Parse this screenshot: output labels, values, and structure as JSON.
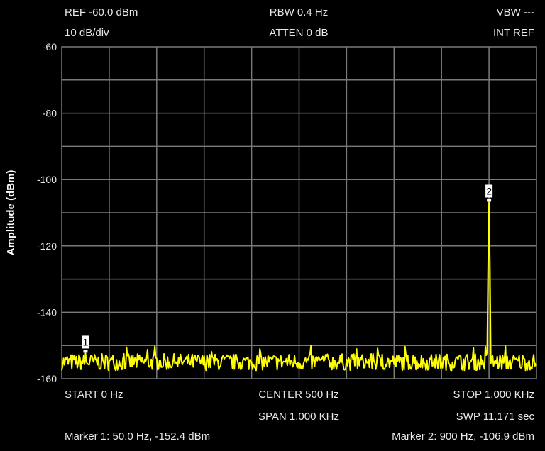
{
  "header": {
    "ref": "REF -60.0 dBm",
    "rbw": "RBW 0.4 Hz",
    "vbw": "VBW ---",
    "scale": "10 dB/div",
    "atten": "ATTEN 0 dB",
    "int_ref": "INT REF"
  },
  "footer": {
    "start": "START 0 Hz",
    "center": "CENTER 500 Hz",
    "stop": "STOP 1.000 KHz",
    "span": "SPAN 1.000 KHz",
    "swp": "SWP 11.171 sec",
    "marker1": "Marker 1: 50.0 Hz, -152.4 dBm",
    "marker2": "Marker 2: 900 Hz, -106.9 dBm"
  },
  "colors": {
    "trace": "#ffff00",
    "grid": "#7a7a7a",
    "background": "#000000"
  },
  "chart_data": {
    "type": "line",
    "ylabel": "Amplitude (dBm)",
    "xlabel": "",
    "title": "",
    "xlim": [
      0,
      1000
    ],
    "ylim": [
      -160,
      -60
    ],
    "x_unit": "Hz",
    "y_ticks": [
      -60,
      -80,
      -100,
      -120,
      -140,
      -160
    ],
    "grid": true,
    "noise_floor_dbm": -155,
    "series": [
      {
        "peaks": [
          {
            "x": 50.0,
            "y": -152.4
          },
          {
            "x": 900,
            "y": -106.9
          }
        ]
      }
    ],
    "markers": [
      {
        "label": "1",
        "x": 50.0,
        "y": -152.4
      },
      {
        "label": "2",
        "x": 900,
        "y": -106.9
      }
    ]
  }
}
